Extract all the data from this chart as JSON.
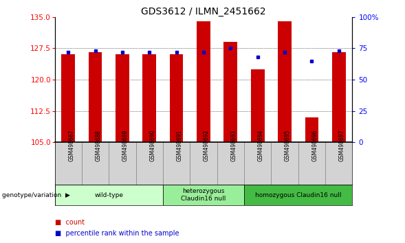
{
  "title": "GDS3612 / ILMN_2451662",
  "samples": [
    "GSM498687",
    "GSM498688",
    "GSM498689",
    "GSM498690",
    "GSM498691",
    "GSM498692",
    "GSM498693",
    "GSM498694",
    "GSM498695",
    "GSM498696",
    "GSM498697"
  ],
  "red_values": [
    126.0,
    126.5,
    126.1,
    126.0,
    126.0,
    134.0,
    129.0,
    122.5,
    134.0,
    111.0,
    126.5
  ],
  "blue_percentiles": [
    72,
    73,
    72,
    72,
    72,
    72,
    75,
    68,
    72,
    65,
    73
  ],
  "ymin": 105,
  "ymax": 135,
  "yticks_left": [
    105,
    112.5,
    120,
    127.5,
    135
  ],
  "yticks_right_vals": [
    0,
    25,
    50,
    75,
    100
  ],
  "yticks_right_labels": [
    "0",
    "25",
    "50",
    "75",
    "100%"
  ],
  "bar_color": "#cc0000",
  "dot_color": "#0000cc",
  "group_ranges": [
    {
      "start": 0,
      "end": 3,
      "label": "wild-type",
      "color": "#ccffcc"
    },
    {
      "start": 4,
      "end": 6,
      "label": "heterozygous\nClaudin16 null",
      "color": "#99ee99"
    },
    {
      "start": 7,
      "end": 10,
      "label": "homozygous Claudin16 null",
      "color": "#44bb44"
    }
  ],
  "bar_color_legend": "#cc0000",
  "dot_color_legend": "#0000cc",
  "legend_labels": [
    "count",
    "percentile rank within the sample"
  ],
  "xlabel_genotype": "genotype/variation"
}
